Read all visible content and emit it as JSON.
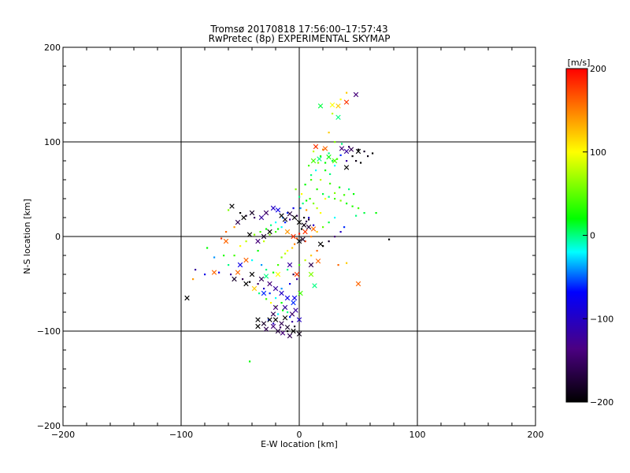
{
  "chart_data": {
    "type": "scatter",
    "title": "Tromsø 20170818 17:56:00–17:57:43",
    "subtitle": "RwPretec (8p) EXPERIMENTAL SKYMAP",
    "xlabel": "E-W location [km]",
    "ylabel": "N-S location [km]",
    "xlim": [
      -200,
      200
    ],
    "ylim": [
      -200,
      200
    ],
    "xticks": [
      -200,
      -100,
      0,
      100,
      200
    ],
    "yticks": [
      -200,
      -100,
      0,
      100,
      200
    ],
    "xtick_labels": [
      "−200",
      "−100",
      "0",
      "100",
      "200"
    ],
    "ytick_labels": [
      "−200",
      "−100",
      "0",
      "100",
      "200"
    ],
    "grid": true,
    "colorbar": {
      "label": "[m/s]",
      "range": [
        -200,
        200
      ],
      "ticks": [
        200,
        100,
        0,
        -100,
        -200
      ],
      "tick_labels": [
        "200",
        "100",
        "0",
        "−100",
        "−200"
      ],
      "colormap": [
        "#000000",
        "#4b0082",
        "#0000ff",
        "#00ffff",
        "#00ff00",
        "#ffff00",
        "#ff0000"
      ]
    },
    "markers": {
      "point": "dot",
      "cross": "x"
    },
    "points_dot": [
      [
        40,
        152,
        120
      ],
      [
        35,
        145,
        100
      ],
      [
        28,
        130,
        80
      ],
      [
        25,
        110,
        120
      ],
      [
        30,
        100,
        60
      ],
      [
        36,
        98,
        0
      ],
      [
        42,
        95,
        -150
      ],
      [
        50,
        92,
        -200
      ],
      [
        55,
        90,
        -180
      ],
      [
        58,
        85,
        -190
      ],
      [
        62,
        88,
        -200
      ],
      [
        45,
        85,
        -200
      ],
      [
        48,
        80,
        -190
      ],
      [
        52,
        78,
        -200
      ],
      [
        40,
        80,
        -120
      ],
      [
        32,
        82,
        40
      ],
      [
        28,
        80,
        10
      ],
      [
        22,
        78,
        20
      ],
      [
        18,
        85,
        30
      ],
      [
        16,
        78,
        60
      ],
      [
        12,
        90,
        80
      ],
      [
        20,
        92,
        150
      ],
      [
        14,
        95,
        160
      ],
      [
        25,
        88,
        0
      ],
      [
        30,
        75,
        -20
      ],
      [
        35,
        86,
        -60
      ],
      [
        22,
        70,
        20
      ],
      [
        26,
        66,
        0
      ],
      [
        10,
        60,
        40
      ],
      [
        15,
        50,
        30
      ],
      [
        20,
        45,
        10
      ],
      [
        25,
        42,
        0
      ],
      [
        30,
        40,
        40
      ],
      [
        35,
        38,
        60
      ],
      [
        40,
        35,
        20
      ],
      [
        45,
        32,
        30
      ],
      [
        50,
        30,
        40
      ],
      [
        55,
        25,
        10
      ],
      [
        65,
        25,
        20
      ],
      [
        48,
        22,
        0
      ],
      [
        30,
        20,
        -20
      ],
      [
        25,
        15,
        10
      ],
      [
        20,
        10,
        50
      ],
      [
        15,
        5,
        120
      ],
      [
        10,
        0,
        150
      ],
      [
        5,
        -5,
        180
      ],
      [
        12,
        12,
        -100
      ],
      [
        8,
        18,
        -180
      ],
      [
        4,
        20,
        -200
      ],
      [
        -2,
        22,
        -150
      ],
      [
        -8,
        18,
        -120
      ],
      [
        -12,
        15,
        -60
      ],
      [
        -15,
        10,
        -20
      ],
      [
        -18,
        8,
        20
      ],
      [
        -20,
        5,
        40
      ],
      [
        -25,
        2,
        60
      ],
      [
        -30,
        -5,
        80
      ],
      [
        -35,
        -15,
        20
      ],
      [
        -40,
        -25,
        -20
      ],
      [
        -32,
        -30,
        -40
      ],
      [
        -28,
        -35,
        0
      ],
      [
        -22,
        -38,
        20
      ],
      [
        -18,
        -30,
        40
      ],
      [
        -15,
        -22,
        60
      ],
      [
        -12,
        -18,
        80
      ],
      [
        -10,
        -15,
        100
      ],
      [
        -6,
        -12,
        120
      ],
      [
        -4,
        -8,
        150
      ],
      [
        -2,
        -2,
        170
      ],
      [
        0,
        3,
        190
      ],
      [
        2,
        8,
        -200
      ],
      [
        4,
        12,
        -190
      ],
      [
        6,
        16,
        -160
      ],
      [
        8,
        20,
        -100
      ],
      [
        1,
        30,
        -40
      ],
      [
        3,
        35,
        0
      ],
      [
        6,
        38,
        20
      ],
      [
        9,
        40,
        40
      ],
      [
        12,
        35,
        60
      ],
      [
        15,
        30,
        80
      ],
      [
        18,
        25,
        100
      ],
      [
        -5,
        30,
        -80
      ],
      [
        -10,
        25,
        -60
      ],
      [
        -14,
        20,
        -40
      ],
      [
        -20,
        15,
        -20
      ],
      [
        -24,
        12,
        0
      ],
      [
        -28,
        8,
        20
      ],
      [
        -33,
        5,
        40
      ],
      [
        -38,
        2,
        60
      ],
      [
        -45,
        -5,
        80
      ],
      [
        -50,
        -10,
        100
      ],
      [
        -55,
        -20,
        40
      ],
      [
        -60,
        -30,
        0
      ],
      [
        -78,
        -12,
        20
      ],
      [
        -72,
        -22,
        -40
      ],
      [
        -68,
        -38,
        -80
      ],
      [
        -58,
        -40,
        -120
      ],
      [
        -48,
        -45,
        -160
      ],
      [
        -42,
        -48,
        -200
      ],
      [
        -35,
        -50,
        -150
      ],
      [
        -30,
        -55,
        -100
      ],
      [
        -25,
        -60,
        -60
      ],
      [
        -20,
        -65,
        -20
      ],
      [
        -15,
        -70,
        20
      ],
      [
        -12,
        -75,
        60
      ],
      [
        -10,
        -80,
        0
      ],
      [
        -8,
        -85,
        -60
      ],
      [
        -6,
        -90,
        -120
      ],
      [
        -4,
        -95,
        -180
      ],
      [
        -10,
        -100,
        -200
      ],
      [
        -16,
        -96,
        -150
      ],
      [
        -22,
        -92,
        -100
      ],
      [
        -26,
        -88,
        -60
      ],
      [
        -18,
        -82,
        -20
      ],
      [
        -14,
        -78,
        20
      ],
      [
        -20,
        -74,
        60
      ],
      [
        -24,
        -70,
        100
      ],
      [
        -28,
        -66,
        40
      ],
      [
        -34,
        -60,
        0
      ],
      [
        -15,
        -55,
        -40
      ],
      [
        -8,
        -50,
        -80
      ],
      [
        -2,
        -45,
        -120
      ],
      [
        -5,
        -40,
        -160
      ],
      [
        -10,
        -35,
        0
      ],
      [
        0,
        -30,
        40
      ],
      [
        5,
        -25,
        80
      ],
      [
        10,
        -20,
        120
      ],
      [
        15,
        -15,
        160
      ],
      [
        20,
        -10,
        -200
      ],
      [
        25,
        -5,
        -180
      ],
      [
        30,
        0,
        -140
      ],
      [
        35,
        5,
        -100
      ],
      [
        38,
        10,
        -60
      ],
      [
        76,
        -3,
        -200
      ],
      [
        -42,
        -132,
        20
      ],
      [
        -60,
        28,
        60
      ],
      [
        -50,
        25,
        -200
      ],
      [
        -45,
        22,
        -180
      ],
      [
        -38,
        20,
        -150
      ],
      [
        -55,
        10,
        140
      ],
      [
        -62,
        5,
        160
      ],
      [
        -66,
        -2,
        180
      ],
      [
        33,
        -30,
        160
      ],
      [
        40,
        -28,
        120
      ],
      [
        -80,
        -40,
        -80
      ],
      [
        -88,
        -35,
        -120
      ],
      [
        -90,
        -45,
        140
      ],
      [
        -64,
        -20,
        30
      ],
      [
        2,
        45,
        100
      ],
      [
        -3,
        50,
        60
      ],
      [
        5,
        55,
        20
      ],
      [
        10,
        65,
        0
      ],
      [
        14,
        70,
        -20
      ],
      [
        8,
        75,
        40
      ],
      [
        0,
        42,
        0
      ],
      [
        18,
        60,
        80
      ],
      [
        26,
        56,
        40
      ],
      [
        34,
        52,
        20
      ],
      [
        42,
        50,
        0
      ],
      [
        46,
        45,
        20
      ],
      [
        38,
        44,
        40
      ],
      [
        30,
        46,
        60
      ],
      [
        22,
        40,
        100
      ],
      [
        6,
        28,
        140
      ]
    ],
    "points_cross": [
      [
        48,
        150,
        -140
      ],
      [
        40,
        142,
        180
      ],
      [
        33,
        138,
        120
      ],
      [
        28,
        139,
        100
      ],
      [
        18,
        138,
        10
      ],
      [
        33,
        126,
        0
      ],
      [
        50,
        90,
        -200
      ],
      [
        40,
        90,
        -120
      ],
      [
        44,
        92,
        -160
      ],
      [
        36,
        93,
        -140
      ],
      [
        40,
        73,
        -200
      ],
      [
        30,
        80,
        40
      ],
      [
        25,
        84,
        20
      ],
      [
        22,
        93,
        160
      ],
      [
        14,
        95,
        180
      ],
      [
        17,
        82,
        0
      ],
      [
        12,
        80,
        40
      ],
      [
        -57,
        32,
        -200
      ],
      [
        -47,
        20,
        -200
      ],
      [
        -40,
        25,
        -180
      ],
      [
        -32,
        20,
        -120
      ],
      [
        -28,
        25,
        -150
      ],
      [
        -22,
        30,
        -100
      ],
      [
        -18,
        28,
        -80
      ],
      [
        -15,
        22,
        -200
      ],
      [
        -12,
        18,
        -190
      ],
      [
        -8,
        24,
        -170
      ],
      [
        -4,
        20,
        -200
      ],
      [
        0,
        15,
        -200
      ],
      [
        4,
        12,
        -190
      ],
      [
        8,
        10,
        -170
      ],
      [
        12,
        8,
        160
      ],
      [
        -25,
        5,
        -200
      ],
      [
        -30,
        0,
        -180
      ],
      [
        -35,
        -5,
        -140
      ],
      [
        -10,
        5,
        140
      ],
      [
        -5,
        0,
        180
      ],
      [
        0,
        -5,
        -200
      ],
      [
        3,
        -3,
        -180
      ],
      [
        18,
        -8,
        -200
      ],
      [
        16,
        -26,
        160
      ],
      [
        10,
        -30,
        -160
      ],
      [
        -45,
        -25,
        160
      ],
      [
        -50,
        -30,
        -80
      ],
      [
        -52,
        -38,
        160
      ],
      [
        -40,
        -40,
        -200
      ],
      [
        -32,
        -45,
        -160
      ],
      [
        -25,
        -50,
        -140
      ],
      [
        -20,
        -55,
        -120
      ],
      [
        -15,
        -60,
        -100
      ],
      [
        -10,
        -65,
        -80
      ],
      [
        -5,
        -70,
        -60
      ],
      [
        -28,
        -42,
        0
      ],
      [
        -18,
        -40,
        100
      ],
      [
        10,
        -40,
        60
      ],
      [
        13,
        -52,
        0
      ],
      [
        -20,
        -75,
        -140
      ],
      [
        -22,
        -82,
        -160
      ],
      [
        -25,
        -88,
        -200
      ],
      [
        -30,
        -92,
        -180
      ],
      [
        -35,
        -95,
        -200
      ],
      [
        -28,
        -98,
        -160
      ],
      [
        -22,
        -95,
        -140
      ],
      [
        -15,
        -92,
        -160
      ],
      [
        -10,
        -96,
        -180
      ],
      [
        -5,
        -100,
        -200
      ],
      [
        0,
        -103,
        -190
      ],
      [
        -8,
        -105,
        -160
      ],
      [
        -14,
        -102,
        -140
      ],
      [
        -20,
        -88,
        -200
      ],
      [
        -12,
        -86,
        -200
      ],
      [
        -6,
        -82,
        -150
      ],
      [
        -3,
        -78,
        -120
      ],
      [
        0,
        -88,
        -100
      ],
      [
        -95,
        -65,
        -200
      ],
      [
        -72,
        -38,
        160
      ],
      [
        -55,
        -45,
        -180
      ],
      [
        -45,
        -50,
        -200
      ],
      [
        -38,
        -55,
        120
      ],
      [
        -30,
        -60,
        -60
      ],
      [
        50,
        -50,
        160
      ],
      [
        -2,
        -40,
        180
      ],
      [
        -8,
        -30,
        -120
      ],
      [
        5,
        5,
        180
      ],
      [
        -35,
        -88,
        -200
      ],
      [
        -18,
        -100,
        -170
      ],
      [
        -12,
        -75,
        -120
      ],
      [
        -4,
        -65,
        -80
      ],
      [
        1,
        -60,
        40
      ],
      [
        -42,
        2,
        -200
      ],
      [
        -62,
        -5,
        160
      ],
      [
        -52,
        15,
        -160
      ]
    ]
  }
}
